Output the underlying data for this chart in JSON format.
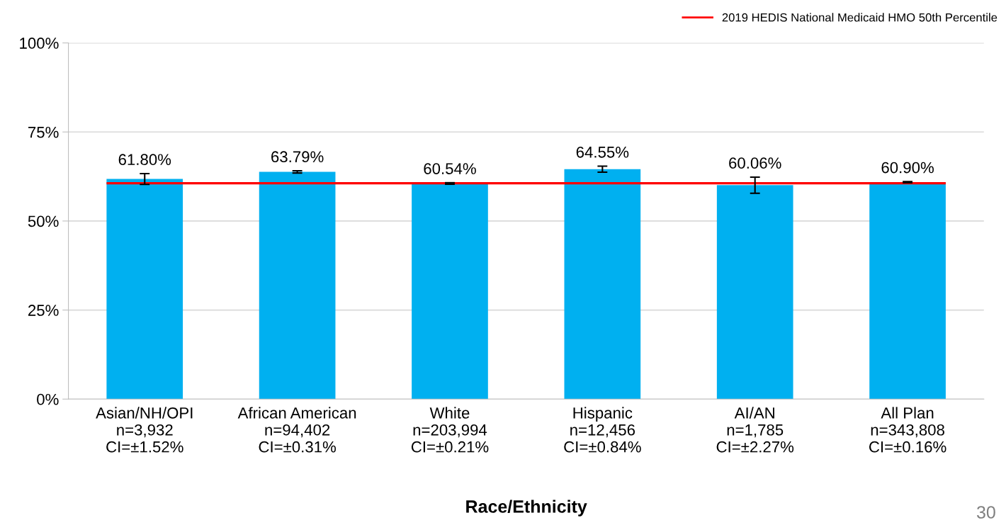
{
  "chart_data": {
    "type": "bar",
    "categories": [
      "Asian/NH/OPI\nn=3,932\nCI=±1.52%",
      "African American\nn=94,402\nCI=±0.31%",
      "White\nn=203,994\nCI=±0.21%",
      "Hispanic\nn=12,456\nCI=±0.84%",
      "AI/AN\nn=1,785\nCI=±2.27%",
      "All Plan\nn=343,808\nCI=±0.16%"
    ],
    "values": [
      61.8,
      63.79,
      60.54,
      64.55,
      60.06,
      60.9
    ],
    "value_labels": [
      "61.80%",
      "63.79%",
      "60.54%",
      "64.55%",
      "60.06%",
      "60.90%"
    ],
    "errors": [
      1.52,
      0.31,
      0.21,
      0.84,
      2.27,
      0.16
    ],
    "color": "#00b0f0",
    "xlabel": "Race/Ethnicity",
    "ylim": [
      0,
      100
    ],
    "yticks": [
      {
        "value": 0,
        "label": "0%"
      },
      {
        "value": 25,
        "label": "25%"
      },
      {
        "value": 50,
        "label": "50%"
      },
      {
        "value": 75,
        "label": "75%"
      },
      {
        "value": 100,
        "label": "100%"
      }
    ],
    "grid": "y",
    "ref_lines": [
      {
        "axis": "y",
        "value": 60.6,
        "label": "2019 HEDIS National Medicaid HMO 50th Percentile",
        "color": "#ff0000"
      }
    ],
    "legend": "top right",
    "annotations": [
      "30"
    ]
  }
}
